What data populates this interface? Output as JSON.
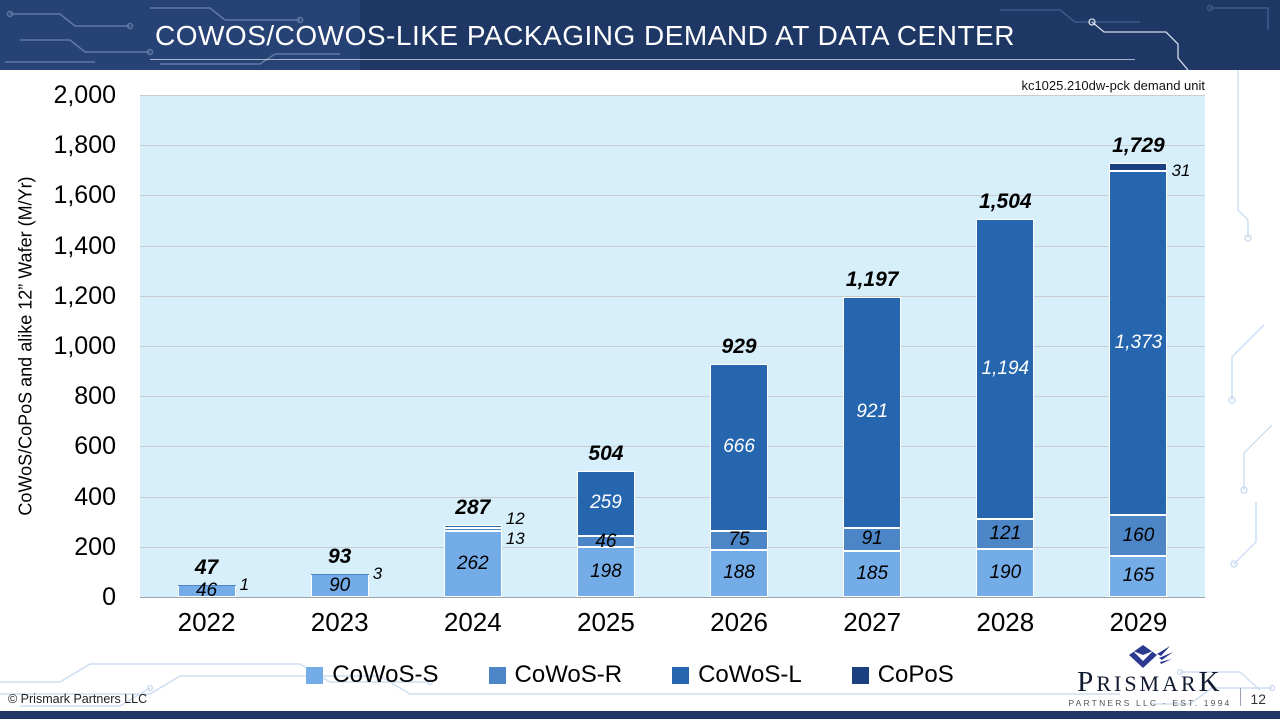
{
  "header": {
    "title": "COWOS/COWOS-LIKE PACKAGING DEMAND AT DATA CENTER"
  },
  "note": "kc1025.210dw-pck demand unit",
  "chart_data": {
    "type": "bar",
    "stacked": true,
    "title": "COWOS/COWOS-LIKE PACKAGING DEMAND AT DATA CENTER",
    "ylabel": "CoWoS/CoPoS and alike 12” Wafer (M/Yr)",
    "xlabel": "",
    "ylim": [
      0,
      2000
    ],
    "ytick_step": 200,
    "grid": true,
    "legend_position": "bottom",
    "plot_bg": "#D7EFFA",
    "categories": [
      "2022",
      "2023",
      "2024",
      "2025",
      "2026",
      "2027",
      "2028",
      "2029"
    ],
    "series": [
      {
        "name": "CoWoS-S",
        "color": "#74ACE8",
        "label_color": "#000000",
        "values": [
          46,
          90,
          262,
          198,
          188,
          185,
          190,
          165
        ]
      },
      {
        "name": "CoWoS-R",
        "color": "#4C86C6",
        "label_color": "#000000",
        "values": [
          1,
          3,
          13,
          46,
          75,
          91,
          121,
          160
        ]
      },
      {
        "name": "CoWoS-L",
        "color": "#2566AE",
        "label_color": "#FFFFFF",
        "values": [
          0,
          0,
          12,
          259,
          666,
          921,
          1194,
          1373
        ]
      },
      {
        "name": "CoPoS",
        "color": "#1A4080",
        "label_color": "#FFFFFF",
        "values": [
          0,
          0,
          0,
          0,
          0,
          0,
          0,
          31
        ]
      }
    ],
    "totals": [
      "47",
      "93",
      "287",
      "504",
      "929",
      "1,197",
      "1,504",
      "1,729"
    ],
    "callouts": [
      {
        "cat": "2022",
        "text": "1",
        "dy": -10
      },
      {
        "cat": "2023",
        "text": "3",
        "dy": -10
      },
      {
        "cat": "2024",
        "text": "12\n13",
        "dy": -16
      },
      {
        "cat": "2029",
        "text": "31",
        "dy": -2
      }
    ]
  },
  "footer": {
    "copyright": "© Prismark Partners LLC",
    "logo": {
      "p": "P",
      "mid": "RISMAR",
      "k": "K",
      "subtitle": "PARTNERS LLC · EST. 1994"
    },
    "page": "12"
  }
}
